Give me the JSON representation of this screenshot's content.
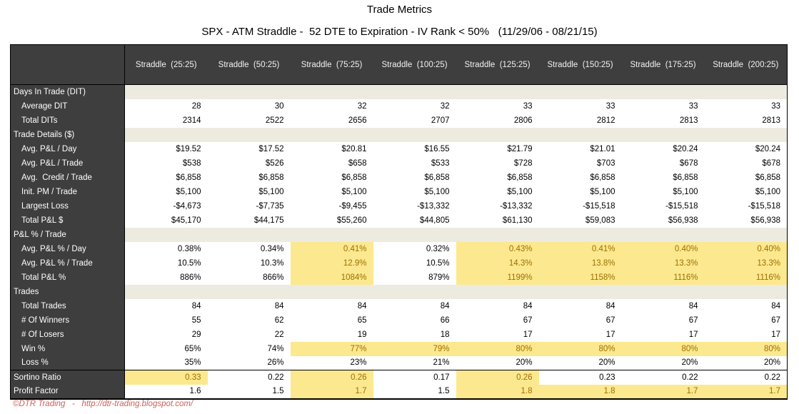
{
  "title": "Trade Metrics",
  "subtitle": "SPX - ATM Straddle -  52 DTE to Expiration - IV Rank < 50%   (11/29/06 - 08/21/15)",
  "footer": "©DTR Trading   -   http://dtr-trading.blogspot.com/",
  "colors": {
    "header_bg": "#3E3E3E",
    "header_text": "#F2F2F2",
    "section_band": "#EDEBE0",
    "highlight_bg": "#FCE88F",
    "highlight_text": "#9C7000",
    "footer_text": "#C8625D"
  },
  "chart_data": {
    "type": "table",
    "title": "Trade Metrics",
    "subtitle": "SPX - ATM Straddle - 52 DTE to Expiration - IV Rank < 50% (11/29/06 - 08/21/15)",
    "columns": [
      "Straddle  (25:25)",
      "Straddle  (50:25)",
      "Straddle  (75:25)",
      "Straddle  (100:25)",
      "Straddle  (125:25)",
      "Straddle  (150:25)",
      "Straddle  (175:25)",
      "Straddle  (200:25)"
    ],
    "rows": [
      {
        "label": "Days In Trade (DIT)",
        "type": "section"
      },
      {
        "label": "Average DIT",
        "type": "data",
        "values": [
          "28",
          "30",
          "32",
          "32",
          "33",
          "33",
          "33",
          "33"
        ],
        "hl": [
          0,
          0,
          0,
          0,
          0,
          0,
          0,
          0
        ]
      },
      {
        "label": "Total DITs",
        "type": "data",
        "values": [
          "2314",
          "2522",
          "2656",
          "2707",
          "2806",
          "2812",
          "2813",
          "2813"
        ],
        "hl": [
          0,
          0,
          0,
          0,
          0,
          0,
          0,
          0
        ]
      },
      {
        "label": "Trade Details ($)",
        "type": "section"
      },
      {
        "label": "Avg. P&L / Day",
        "type": "data",
        "values": [
          "$19.52",
          "$17.52",
          "$20.81",
          "$16.55",
          "$21.79",
          "$21.01",
          "$20.24",
          "$20.24"
        ],
        "hl": [
          0,
          0,
          0,
          0,
          0,
          0,
          0,
          0
        ]
      },
      {
        "label": "Avg. P&L / Trade",
        "type": "data",
        "values": [
          "$538",
          "$526",
          "$658",
          "$533",
          "$728",
          "$703",
          "$678",
          "$678"
        ],
        "hl": [
          0,
          0,
          0,
          0,
          0,
          0,
          0,
          0
        ]
      },
      {
        "label": "Avg.  Credit / Trade",
        "type": "data",
        "values": [
          "$6,858",
          "$6,858",
          "$6,858",
          "$6,858",
          "$6,858",
          "$6,858",
          "$6,858",
          "$6,858"
        ],
        "hl": [
          0,
          0,
          0,
          0,
          0,
          0,
          0,
          0
        ]
      },
      {
        "label": "Init. PM / Trade",
        "type": "data",
        "values": [
          "$5,100",
          "$5,100",
          "$5,100",
          "$5,100",
          "$5,100",
          "$5,100",
          "$5,100",
          "$5,100"
        ],
        "hl": [
          0,
          0,
          0,
          0,
          0,
          0,
          0,
          0
        ]
      },
      {
        "label": "Largest Loss",
        "type": "data",
        "values": [
          "-$4,673",
          "-$7,735",
          "-$9,455",
          "-$13,332",
          "-$13,332",
          "-$15,518",
          "-$15,518",
          "-$15,518"
        ],
        "hl": [
          0,
          0,
          0,
          0,
          0,
          0,
          0,
          0
        ]
      },
      {
        "label": "Total P&L $",
        "type": "data",
        "values": [
          "$45,170",
          "$44,175",
          "$55,260",
          "$44,805",
          "$61,130",
          "$59,083",
          "$56,938",
          "$56,938"
        ],
        "hl": [
          0,
          0,
          0,
          0,
          0,
          0,
          0,
          0
        ]
      },
      {
        "label": "P&L % / Trade",
        "type": "section"
      },
      {
        "label": "Avg. P&L % / Day",
        "type": "data",
        "values": [
          "0.38%",
          "0.34%",
          "0.41%",
          "0.32%",
          "0.43%",
          "0.41%",
          "0.40%",
          "0.40%"
        ],
        "hl": [
          0,
          0,
          1,
          0,
          1,
          1,
          1,
          1
        ]
      },
      {
        "label": "Avg. P&L % / Trade",
        "type": "data",
        "values": [
          "10.5%",
          "10.3%",
          "12.9%",
          "10.5%",
          "14.3%",
          "13.8%",
          "13.3%",
          "13.3%"
        ],
        "hl": [
          0,
          0,
          1,
          0,
          1,
          1,
          1,
          1
        ]
      },
      {
        "label": "Total P&L %",
        "type": "data",
        "values": [
          "886%",
          "866%",
          "1084%",
          "879%",
          "1199%",
          "1158%",
          "1116%",
          "1116%"
        ],
        "hl": [
          0,
          0,
          1,
          0,
          1,
          1,
          1,
          1
        ]
      },
      {
        "label": "Trades",
        "type": "section"
      },
      {
        "label": "Total Trades",
        "type": "data",
        "values": [
          "84",
          "84",
          "84",
          "84",
          "84",
          "84",
          "84",
          "84"
        ],
        "hl": [
          0,
          0,
          0,
          0,
          0,
          0,
          0,
          0
        ]
      },
      {
        "label": "# Of Winners",
        "type": "data",
        "values": [
          "55",
          "62",
          "65",
          "66",
          "67",
          "67",
          "67",
          "67"
        ],
        "hl": [
          0,
          0,
          0,
          0,
          0,
          0,
          0,
          0
        ]
      },
      {
        "label": "# Of Losers",
        "type": "data",
        "values": [
          "29",
          "22",
          "19",
          "18",
          "17",
          "17",
          "17",
          "17"
        ],
        "hl": [
          0,
          0,
          0,
          0,
          0,
          0,
          0,
          0
        ]
      },
      {
        "label": "Win %",
        "type": "data",
        "values": [
          "65%",
          "74%",
          "77%",
          "79%",
          "80%",
          "80%",
          "80%",
          "80%"
        ],
        "hl": [
          0,
          0,
          1,
          1,
          1,
          1,
          1,
          1
        ]
      },
      {
        "label": "Loss %",
        "type": "data",
        "values": [
          "35%",
          "26%",
          "23%",
          "21%",
          "20%",
          "20%",
          "20%",
          "20%"
        ],
        "hl": [
          0,
          0,
          0,
          0,
          0,
          0,
          0,
          0
        ]
      },
      {
        "label": "Sortino Ratio",
        "type": "summary",
        "values": [
          "0.33",
          "0.22",
          "0.26",
          "0.17",
          "0.26",
          "0.23",
          "0.22",
          "0.22"
        ],
        "hl": [
          1,
          0,
          1,
          0,
          1,
          0,
          0,
          0
        ]
      },
      {
        "label": "Profit Factor",
        "type": "summary",
        "values": [
          "1.6",
          "1.5",
          "1.7",
          "1.5",
          "1.8",
          "1.8",
          "1.7",
          "1.7"
        ],
        "hl": [
          0,
          0,
          1,
          0,
          1,
          1,
          1,
          1
        ]
      }
    ]
  }
}
